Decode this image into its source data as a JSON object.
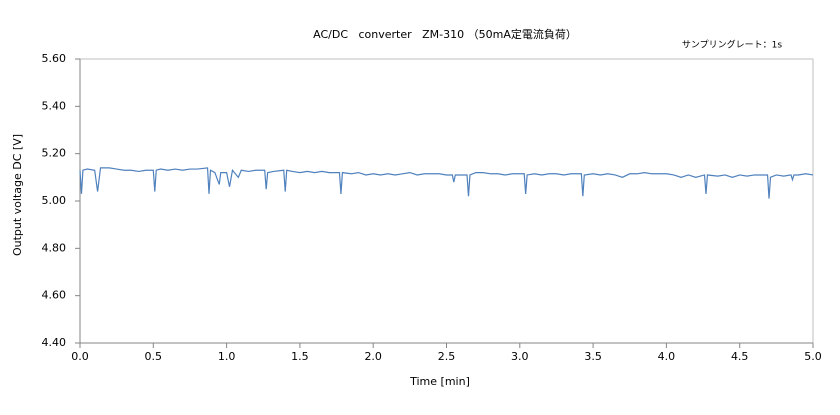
{
  "chart_data": {
    "type": "line",
    "title": "AC/DC   converter   ZM-310 （50mA定電流負荷）",
    "annotation": "サンプリングレート：1s",
    "x_label": "Time [min]",
    "y_label": "Output voltage DC [V]",
    "color": "#4f81bd",
    "xlim": [
      0,
      5
    ],
    "ylim": [
      4.4,
      5.6
    ],
    "xticks": [
      {
        "value": 0,
        "label": "0.0"
      },
      0.5,
      {
        "value": 1,
        "label": "1.0"
      },
      1.5,
      {
        "value": 2,
        "label": "2.0"
      },
      2.5,
      {
        "value": 3,
        "label": "3.0"
      },
      3.5,
      {
        "value": 4,
        "label": "4.0"
      },
      4.5,
      {
        "value": 5,
        "label": "5.0"
      }
    ],
    "yticks": [
      {
        "value": 4.4,
        "label": "4.40"
      },
      {
        "value": 4.6,
        "label": "4.60"
      },
      {
        "value": 4.8,
        "label": "4.80"
      },
      {
        "value": 5.0,
        "label": "5.00"
      },
      {
        "value": 5.2,
        "label": "5.20"
      },
      {
        "value": 5.4,
        "label": "5.40"
      },
      {
        "value": 5.6,
        "label": "5.60"
      }
    ],
    "x": [
      0,
      0.01,
      0.02,
      0.05,
      0.1,
      0.12,
      0.14,
      0.2,
      0.25,
      0.3,
      0.35,
      0.4,
      0.45,
      0.5,
      0.51,
      0.52,
      0.55,
      0.6,
      0.65,
      0.7,
      0.75,
      0.8,
      0.87,
      0.88,
      0.89,
      0.92,
      0.95,
      0.96,
      1.0,
      1.02,
      1.04,
      1.08,
      1.1,
      1.15,
      1.2,
      1.26,
      1.27,
      1.28,
      1.32,
      1.39,
      1.4,
      1.41,
      1.45,
      1.5,
      1.55,
      1.6,
      1.65,
      1.7,
      1.77,
      1.78,
      1.79,
      1.85,
      1.9,
      1.95,
      2.0,
      2.05,
      2.1,
      2.15,
      2.2,
      2.25,
      2.3,
      2.35,
      2.4,
      2.45,
      2.5,
      2.54,
      2.55,
      2.56,
      2.6,
      2.64,
      2.65,
      2.66,
      2.7,
      2.75,
      2.8,
      2.85,
      2.9,
      2.95,
      3.0,
      3.03,
      3.04,
      3.05,
      3.1,
      3.15,
      3.2,
      3.25,
      3.3,
      3.35,
      3.42,
      3.43,
      3.44,
      3.5,
      3.55,
      3.6,
      3.65,
      3.7,
      3.75,
      3.8,
      3.85,
      3.9,
      3.95,
      4.0,
      4.05,
      4.1,
      4.15,
      4.2,
      4.26,
      4.27,
      4.28,
      4.35,
      4.4,
      4.45,
      4.5,
      4.55,
      4.6,
      4.69,
      4.7,
      4.71,
      4.75,
      4.8,
      4.85,
      4.86,
      4.87,
      4.9,
      4.95,
      5.0
    ],
    "values": [
      5.13,
      5.03,
      5.13,
      5.135,
      5.13,
      5.04,
      5.14,
      5.14,
      5.135,
      5.13,
      5.13,
      5.125,
      5.13,
      5.13,
      5.04,
      5.13,
      5.135,
      5.13,
      5.135,
      5.13,
      5.135,
      5.135,
      5.14,
      5.03,
      5.13,
      5.12,
      5.07,
      5.12,
      5.12,
      5.06,
      5.13,
      5.1,
      5.13,
      5.125,
      5.13,
      5.13,
      5.05,
      5.12,
      5.125,
      5.13,
      5.04,
      5.13,
      5.125,
      5.12,
      5.125,
      5.12,
      5.125,
      5.12,
      5.12,
      5.03,
      5.12,
      5.115,
      5.12,
      5.11,
      5.115,
      5.11,
      5.115,
      5.11,
      5.115,
      5.12,
      5.11,
      5.115,
      5.115,
      5.115,
      5.11,
      5.11,
      5.08,
      5.11,
      5.11,
      5.11,
      5.02,
      5.11,
      5.12,
      5.12,
      5.115,
      5.115,
      5.11,
      5.115,
      5.115,
      5.115,
      5.03,
      5.11,
      5.115,
      5.11,
      5.115,
      5.115,
      5.11,
      5.115,
      5.115,
      5.02,
      5.11,
      5.115,
      5.11,
      5.115,
      5.11,
      5.1,
      5.115,
      5.115,
      5.12,
      5.115,
      5.115,
      5.115,
      5.11,
      5.1,
      5.11,
      5.1,
      5.11,
      5.03,
      5.11,
      5.105,
      5.11,
      5.1,
      5.11,
      5.105,
      5.11,
      5.11,
      5.01,
      5.1,
      5.11,
      5.105,
      5.11,
      5.09,
      5.11,
      5.11,
      5.115,
      5.11
    ]
  }
}
